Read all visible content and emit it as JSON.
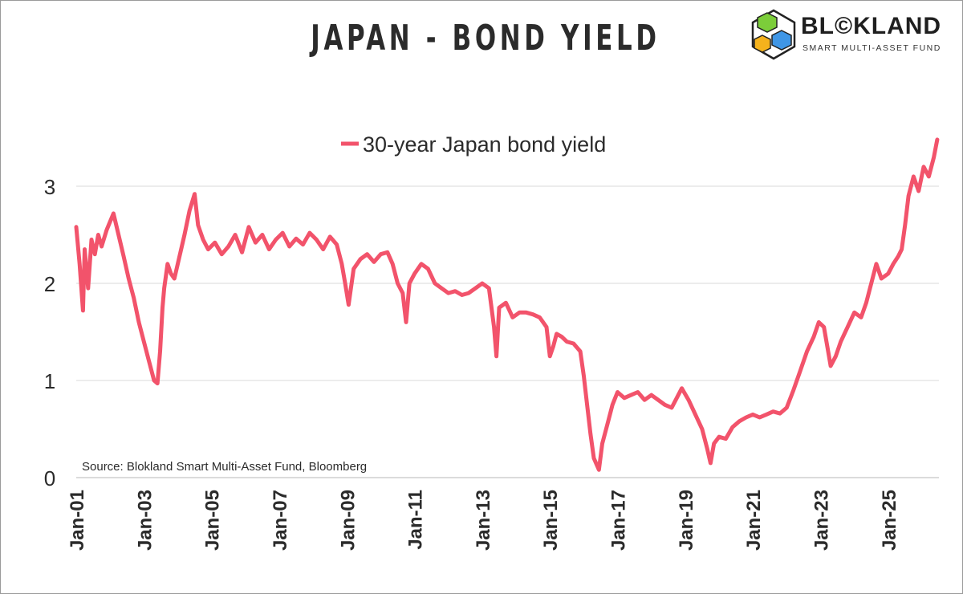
{
  "title": "JAPAN - BOND YIELD",
  "logo": {
    "name_left": "BL",
    "name_mid": "©",
    "name_right": "KLAND",
    "subtitle": "SMART MULTI-ASSET FUND"
  },
  "chart_data": {
    "type": "line",
    "title": "JAPAN - BOND YIELD",
    "xlabel": "",
    "ylabel": "",
    "ylim": [
      0,
      3.5
    ],
    "xlim": [
      2001.0,
      2026.5
    ],
    "yticks": [
      0,
      1,
      2,
      3
    ],
    "xtick_labels": [
      "Jan-01",
      "Jan-03",
      "Jan-05",
      "Jan-07",
      "Jan-09",
      "Jan-11",
      "Jan-13",
      "Jan-15",
      "Jan-17",
      "Jan-19",
      "Jan-21",
      "Jan-23",
      "Jan-25"
    ],
    "xtick_values": [
      2001,
      2003,
      2005,
      2007,
      2009,
      2011,
      2013,
      2015,
      2017,
      2019,
      2021,
      2023,
      2025
    ],
    "source": "Source: Blokland Smart Multi-Asset Fund, Bloomberg",
    "series": [
      {
        "name": "30-year Japan bond yield",
        "color": "#f2536b",
        "x": [
          2001.0,
          2001.1,
          2001.2,
          2001.25,
          2001.35,
          2001.45,
          2001.55,
          2001.65,
          2001.75,
          2001.9,
          2002.1,
          2002.25,
          2002.4,
          2002.55,
          2002.7,
          2002.85,
          2003.0,
          2003.15,
          2003.3,
          2003.4,
          2003.48,
          2003.55,
          2003.6,
          2003.7,
          2003.8,
          2003.9,
          2004.0,
          2004.2,
          2004.35,
          2004.5,
          2004.6,
          2004.75,
          2004.9,
          2005.1,
          2005.3,
          2005.5,
          2005.7,
          2005.9,
          2006.1,
          2006.3,
          2006.5,
          2006.7,
          2006.9,
          2007.1,
          2007.3,
          2007.5,
          2007.7,
          2007.9,
          2008.1,
          2008.3,
          2008.5,
          2008.7,
          2008.85,
          2008.95,
          2009.05,
          2009.2,
          2009.4,
          2009.6,
          2009.8,
          2010.0,
          2010.2,
          2010.35,
          2010.5,
          2010.65,
          2010.75,
          2010.85,
          2011.0,
          2011.2,
          2011.4,
          2011.6,
          2011.8,
          2012.0,
          2012.2,
          2012.4,
          2012.6,
          2012.8,
          2013.0,
          2013.2,
          2013.35,
          2013.42,
          2013.5,
          2013.7,
          2013.9,
          2014.1,
          2014.3,
          2014.5,
          2014.7,
          2014.9,
          2015.0,
          2015.1,
          2015.2,
          2015.35,
          2015.5,
          2015.7,
          2015.9,
          2016.0,
          2016.1,
          2016.2,
          2016.3,
          2016.45,
          2016.55,
          2016.7,
          2016.85,
          2017.0,
          2017.2,
          2017.4,
          2017.6,
          2017.8,
          2018.0,
          2018.2,
          2018.4,
          2018.6,
          2018.75,
          2018.9,
          2019.1,
          2019.3,
          2019.5,
          2019.65,
          2019.75,
          2019.85,
          2020.0,
          2020.2,
          2020.4,
          2020.6,
          2020.8,
          2021.0,
          2021.2,
          2021.4,
          2021.6,
          2021.8,
          2022.0,
          2022.2,
          2022.4,
          2022.6,
          2022.8,
          2022.95,
          2023.1,
          2023.2,
          2023.3,
          2023.45,
          2023.6,
          2023.8,
          2024.0,
          2024.2,
          2024.35,
          2024.5,
          2024.65,
          2024.8,
          2025.0,
          2025.15,
          2025.3,
          2025.4,
          2025.5,
          2025.6,
          2025.75,
          2025.9,
          2026.05,
          2026.2,
          2026.35,
          2026.45
        ],
        "values": [
          2.58,
          2.2,
          1.72,
          2.35,
          1.95,
          2.45,
          2.3,
          2.5,
          2.38,
          2.55,
          2.72,
          2.5,
          2.28,
          2.05,
          1.85,
          1.6,
          1.4,
          1.2,
          1.0,
          0.97,
          1.3,
          1.75,
          1.95,
          2.2,
          2.1,
          2.05,
          2.2,
          2.5,
          2.75,
          2.92,
          2.6,
          2.45,
          2.35,
          2.42,
          2.3,
          2.38,
          2.5,
          2.32,
          2.58,
          2.42,
          2.5,
          2.35,
          2.45,
          2.52,
          2.38,
          2.46,
          2.4,
          2.52,
          2.45,
          2.35,
          2.48,
          2.4,
          2.2,
          2.0,
          1.78,
          2.15,
          2.25,
          2.3,
          2.22,
          2.3,
          2.32,
          2.2,
          2.0,
          1.9,
          1.6,
          2.0,
          2.1,
          2.2,
          2.15,
          2.0,
          1.95,
          1.9,
          1.92,
          1.88,
          1.9,
          1.95,
          2.0,
          1.95,
          1.55,
          1.25,
          1.75,
          1.8,
          1.65,
          1.7,
          1.7,
          1.68,
          1.65,
          1.55,
          1.25,
          1.35,
          1.48,
          1.45,
          1.4,
          1.38,
          1.3,
          1.05,
          0.75,
          0.45,
          0.2,
          0.08,
          0.35,
          0.55,
          0.75,
          0.88,
          0.82,
          0.85,
          0.88,
          0.8,
          0.85,
          0.8,
          0.75,
          0.72,
          0.82,
          0.92,
          0.8,
          0.65,
          0.5,
          0.3,
          0.15,
          0.35,
          0.42,
          0.4,
          0.52,
          0.58,
          0.62,
          0.65,
          0.62,
          0.65,
          0.68,
          0.66,
          0.72,
          0.9,
          1.1,
          1.3,
          1.45,
          1.6,
          1.55,
          1.35,
          1.15,
          1.25,
          1.4,
          1.55,
          1.7,
          1.65,
          1.8,
          2.0,
          2.2,
          2.05,
          2.1,
          2.2,
          2.28,
          2.35,
          2.6,
          2.9,
          3.1,
          2.95,
          3.2,
          3.1,
          3.3,
          3.48
        ]
      }
    ]
  }
}
